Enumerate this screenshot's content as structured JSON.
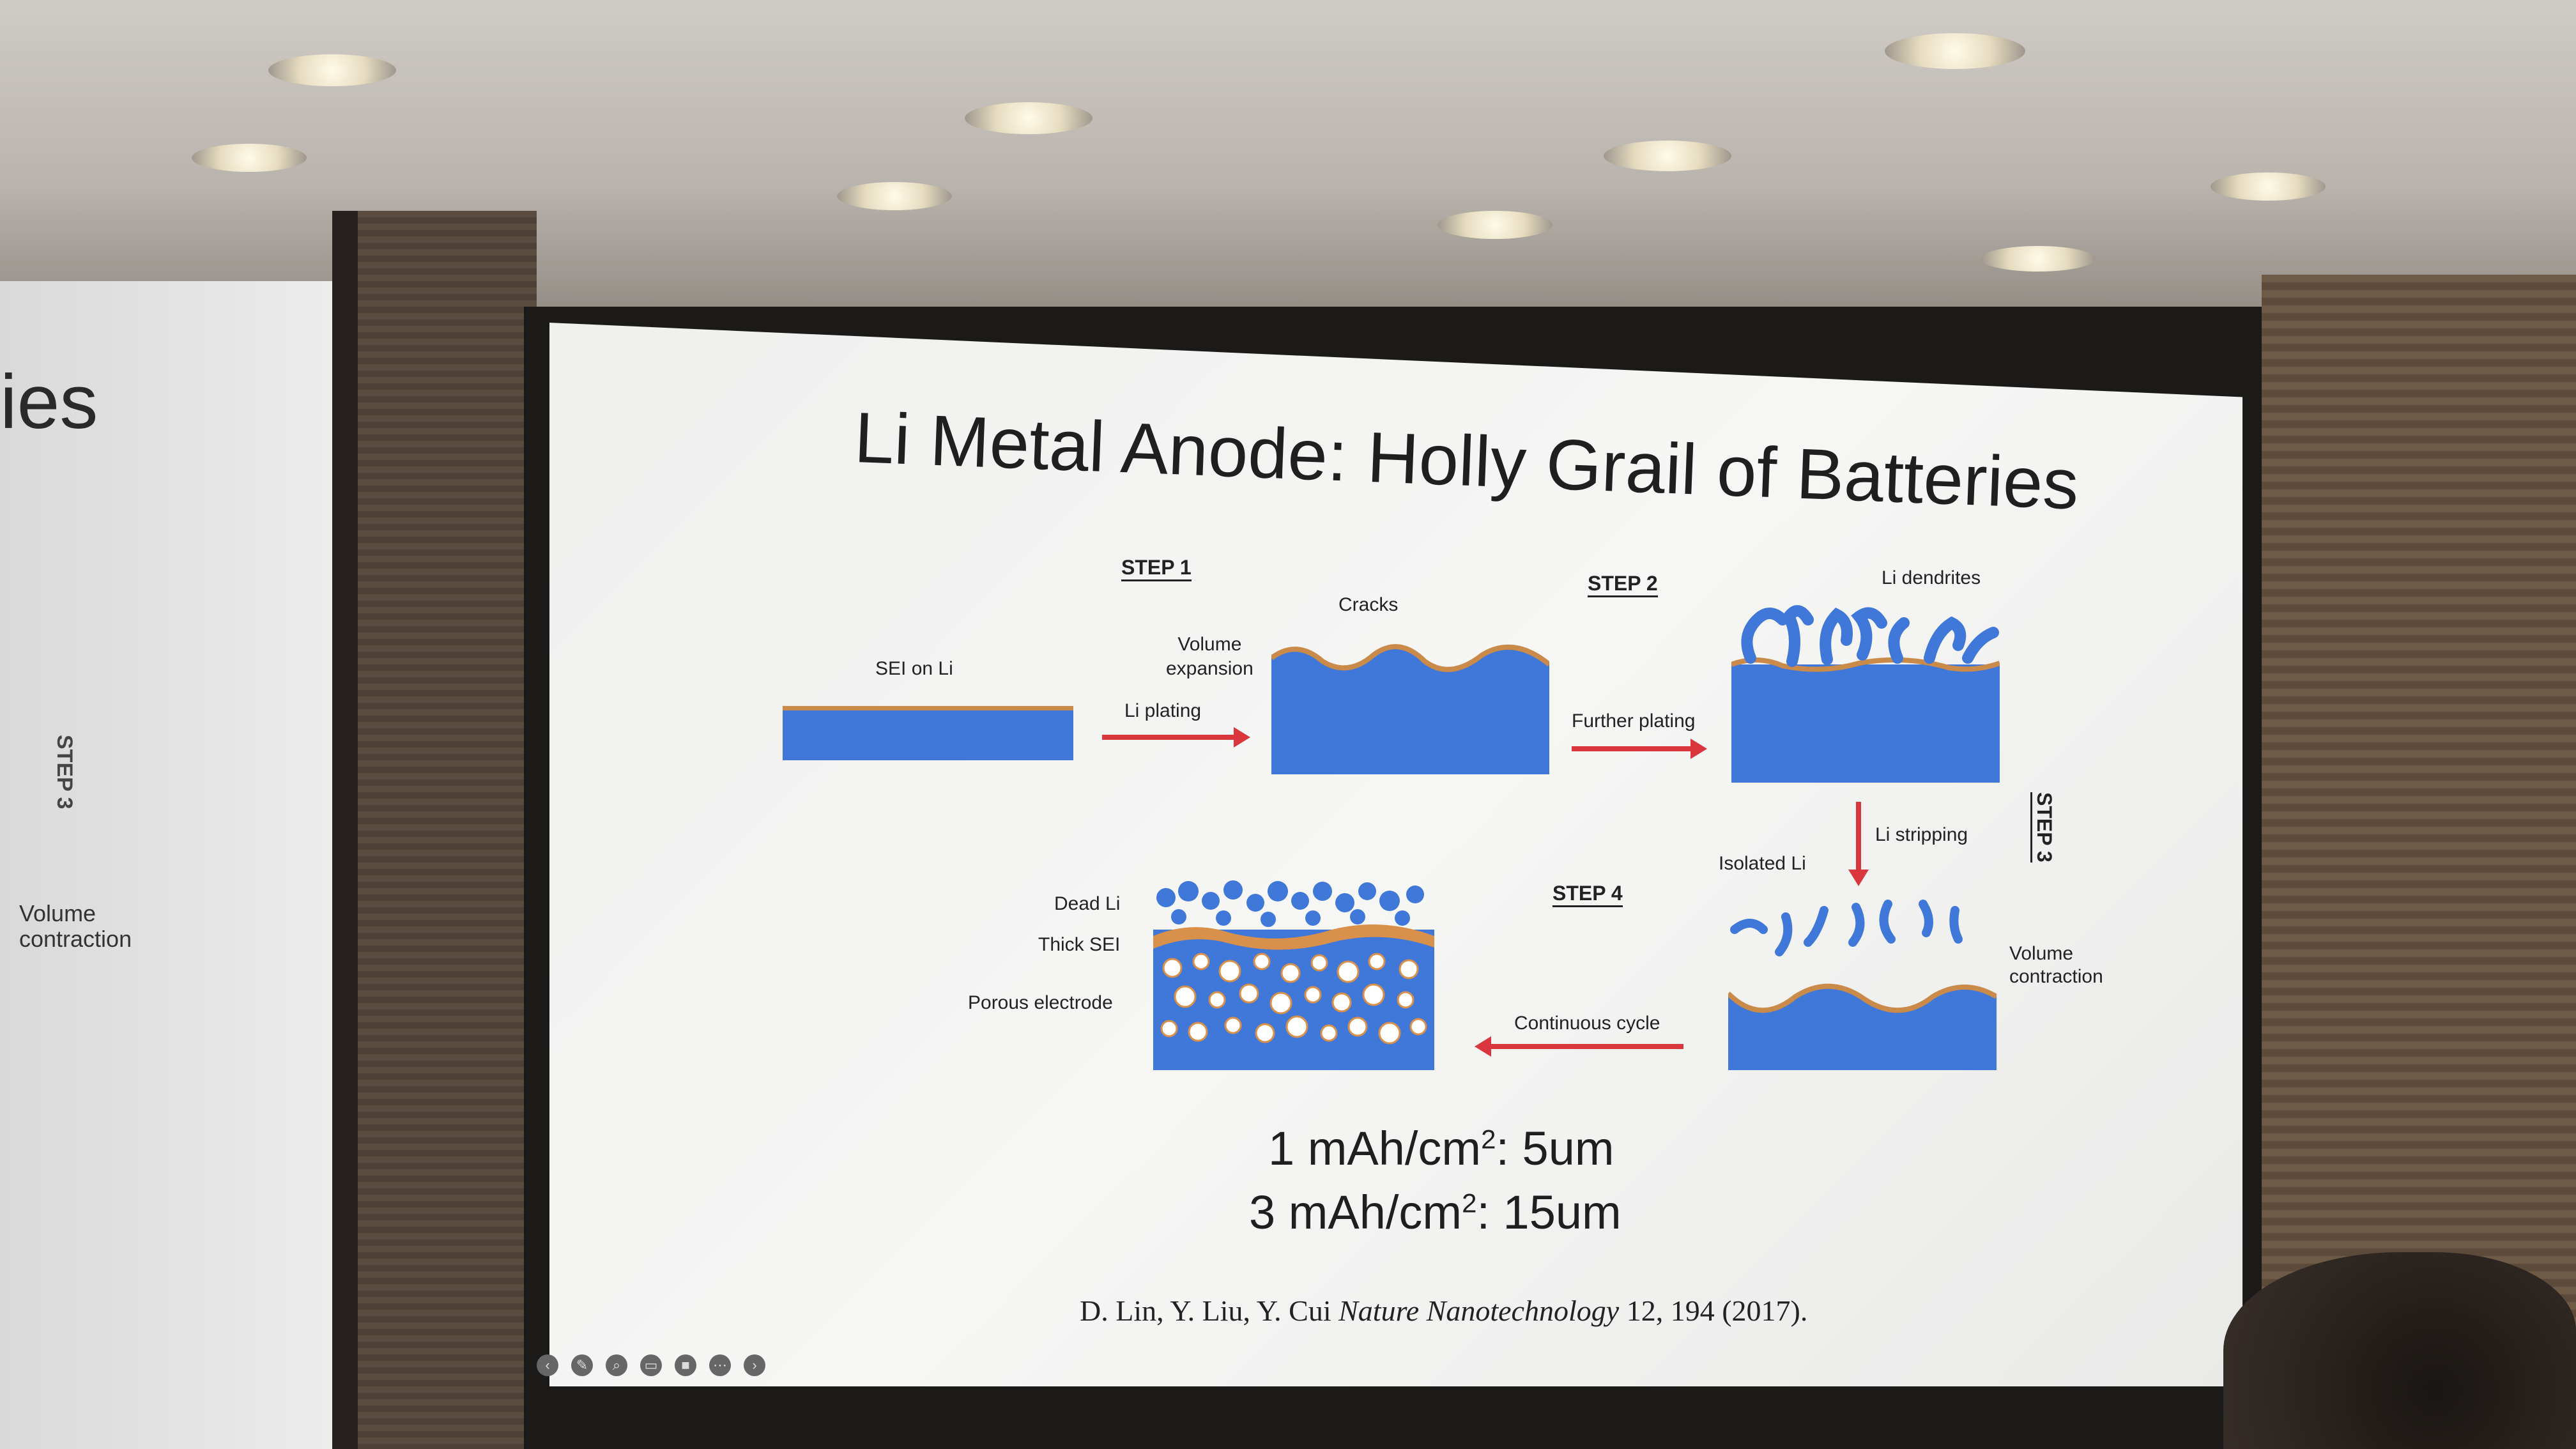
{
  "left_screen": {
    "title_fragment": "ies",
    "step": "STEP 3",
    "volume_contraction": "Volume\ncontraction"
  },
  "slide": {
    "title": "Li Metal Anode: Holly Grail of Batteries",
    "figure": {
      "sei_on_li": "SEI on Li",
      "step1": "STEP 1",
      "step2": "STEP 2",
      "step3": "STEP 3",
      "step4": "STEP 4",
      "volume_expansion": "Volume\nexpansion",
      "li_plating": "Li plating",
      "cracks": "Cracks",
      "further_plating": "Further plating",
      "li_dendrites": "Li dendrites",
      "li_stripping": "Li stripping",
      "isolated_li": "Isolated Li",
      "volume_contraction": "Volume\ncontraction",
      "dead_li": "Dead Li",
      "thick_sei": "Thick SEI",
      "porous_electrode": "Porous electrode",
      "continuous_cycle": "Continuous cycle"
    },
    "eq1_prefix": "1 mAh/cm",
    "eq1_sup": "2",
    "eq1_suffix": ": 5um",
    "eq2_prefix": "3 mAh/cm",
    "eq2_sup": "2",
    "eq2_suffix": ": 15um",
    "citation_authors": "D. Lin, Y. Liu, Y. Cui ",
    "citation_journal": "Nature Nanotechnology",
    "citation_rest": " 12, 194 (2017)."
  },
  "colors": {
    "electrode_blue": "#3f78d8",
    "sei_orange": "#c98a4a",
    "arrow_red": "#d9363e"
  }
}
